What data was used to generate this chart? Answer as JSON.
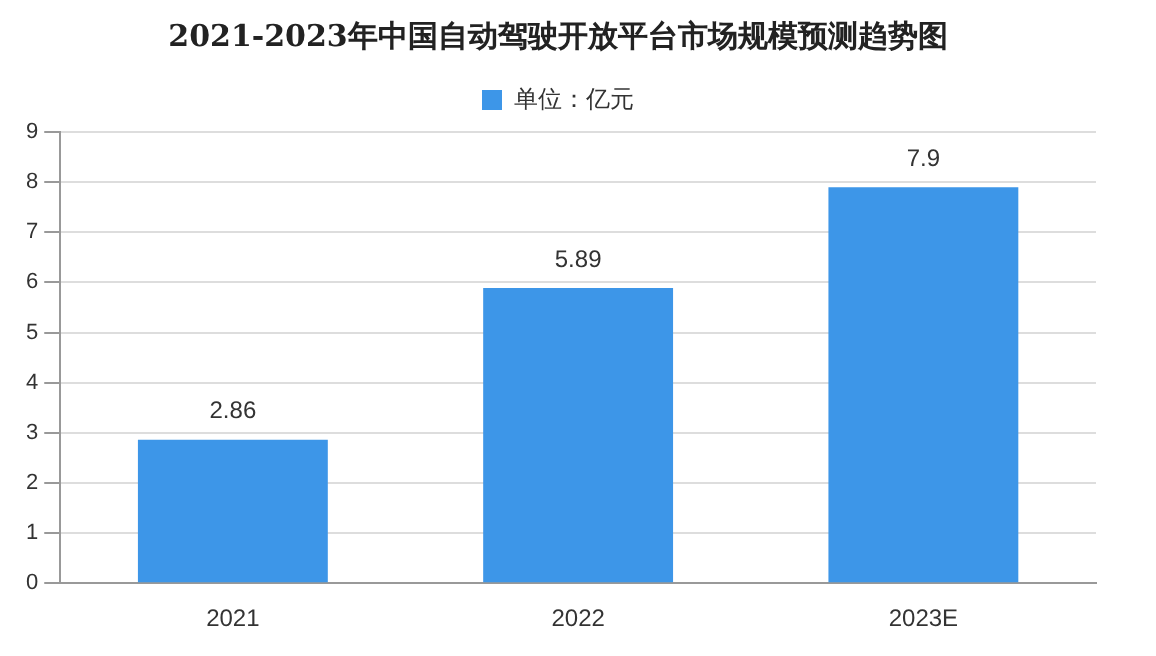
{
  "chart_data": {
    "type": "bar",
    "title": "2021-2023年中国自动驾驶开放平台市场规模预测趋势图",
    "categories": [
      "2021",
      "2022",
      "2023E"
    ],
    "series": [
      {
        "name": "单位：亿元",
        "color": "#3d96e8",
        "values": [
          2.86,
          5.89,
          7.9
        ]
      }
    ],
    "ylim": [
      0,
      9
    ],
    "yticks": [
      0,
      1,
      2,
      3,
      4,
      5,
      6,
      7,
      8,
      9
    ],
    "grid": "y",
    "legend": "top",
    "data_labels": true
  }
}
